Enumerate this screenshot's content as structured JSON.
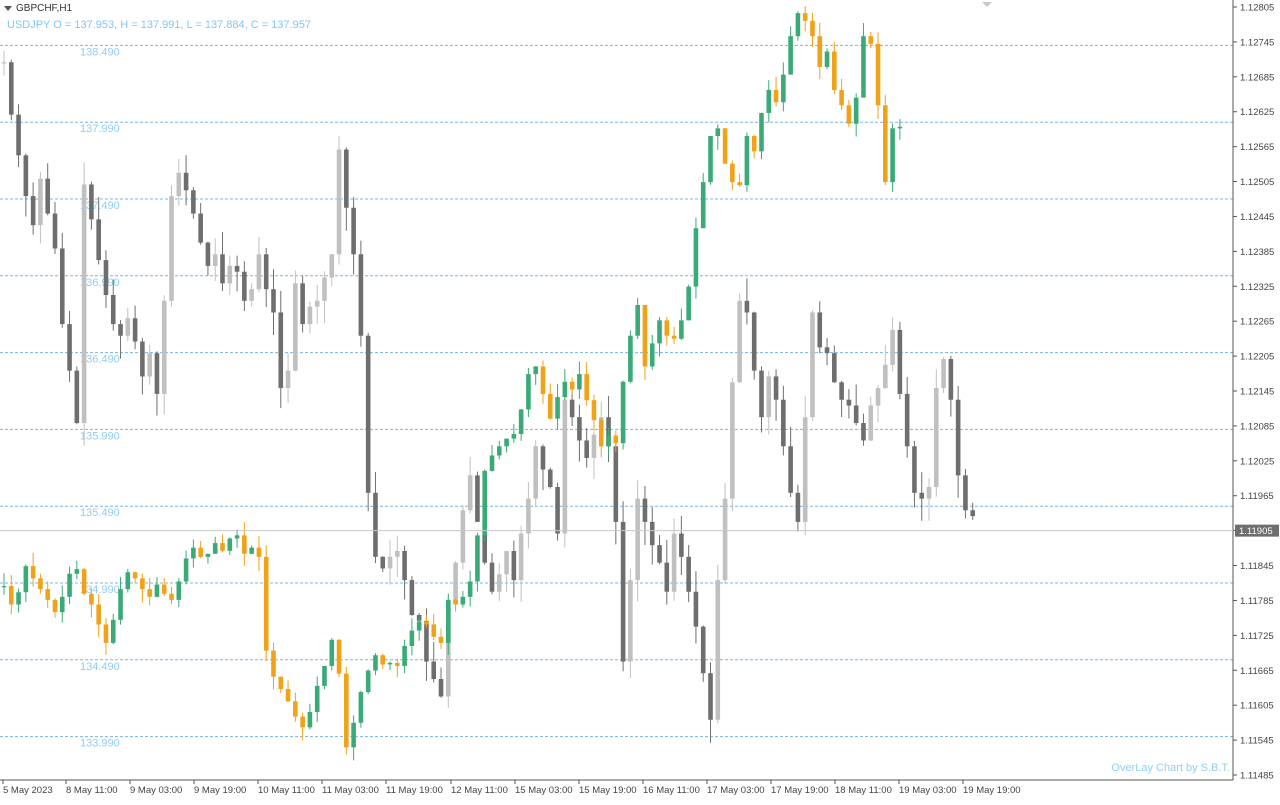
{
  "window": {
    "symbol_title": "GBPCHF,H1",
    "overlay_info": "USDJPY O = 137.953, H = 137.991, L = 137.884, C = 137.957",
    "watermark": "OverLay Chart by S.B.T.",
    "current_price_label": "1.11905"
  },
  "colors": {
    "base_candle": "#6e6e6e",
    "base_candle_light": "#c0c0c0",
    "overlay_bull": "#3aaa78",
    "overlay_bear": "#f0a218",
    "grid_line": "#7ab4e0",
    "overlay_label": "#8fcdf2",
    "axis": "#555555"
  },
  "chart_data": {
    "type": "candlestick",
    "base_symbol": "GBPCHF",
    "timeframe": "H1",
    "overlay_symbol": "USDJPY",
    "y_axis_right": {
      "ticks": [
        "1.12805",
        "1.12745",
        "1.12685",
        "1.12625",
        "1.12565",
        "1.12505",
        "1.12445",
        "1.12385",
        "1.12325",
        "1.12265",
        "1.12205",
        "1.12145",
        "1.12085",
        "1.12025",
        "1.11965",
        "1.11905",
        "1.11845",
        "1.11785",
        "1.11725",
        "1.11665",
        "1.11605",
        "1.11545",
        "1.11485"
      ],
      "range": [
        1.11485,
        1.12805
      ]
    },
    "overlay_levels": [
      "138.490",
      "137.990",
      "137.490",
      "136.990",
      "136.490",
      "135.990",
      "135.490",
      "134.990",
      "134.490",
      "133.990"
    ],
    "overlay_range": [
      133.74,
      138.74
    ],
    "x_axis_labels": [
      "5 May 2023",
      "8 May 11:00",
      "9 May 03:00",
      "9 May 19:00",
      "10 May 11:00",
      "11 May 03:00",
      "11 May 19:00",
      "12 May 11:00",
      "15 May 03:00",
      "15 May 19:00",
      "16 May 11:00",
      "17 May 03:00",
      "17 May 19:00",
      "18 May 11:00",
      "19 May 03:00",
      "19 May 19:00"
    ],
    "base_close_path": [
      1.1271,
      1.1262,
      1.1255,
      1.1248,
      1.1243,
      1.1251,
      1.1245,
      1.1239,
      1.1226,
      1.1218,
      1.1209,
      1.125,
      1.1244,
      1.1237,
      1.1231,
      1.1226,
      1.1224,
      1.1227,
      1.1223,
      1.1217,
      1.1221,
      1.1214,
      1.123,
      1.1248,
      1.1252,
      1.1249,
      1.1245,
      1.124,
      1.1236,
      1.1238,
      1.1233,
      1.1236,
      1.1235,
      1.123,
      1.1232,
      1.1238,
      1.1232,
      1.1228,
      1.1215,
      1.1218,
      1.1233,
      1.1226,
      1.1229,
      1.123,
      1.1234,
      1.1238,
      1.1256,
      1.1246,
      1.1238,
      1.1224,
      1.1197,
      1.1186,
      1.1184,
      1.1186,
      1.1187,
      1.1182,
      1.1176,
      1.1175,
      1.1168,
      1.1165,
      1.1162,
      1.1178,
      1.1185,
      1.1194,
      1.12,
      1.1192,
      1.1185,
      1.118,
      1.1183,
      1.1187,
      1.1182,
      1.119,
      1.1196,
      1.1205,
      1.1201,
      1.1198,
      1.119,
      1.1213,
      1.121,
      1.1206,
      1.1203,
      1.1207,
      1.121,
      1.1205,
      1.1192,
      1.1168,
      1.1182,
      1.1196,
      1.1192,
      1.1188,
      1.1185,
      1.118,
      1.119,
      1.1186,
      1.118,
      1.1174,
      1.1166,
      1.1158,
      1.1182,
      1.1196,
      1.1216,
      1.123,
      1.1228,
      1.1218,
      1.121,
      1.1217,
      1.1213,
      1.1205,
      1.1197,
      1.1192,
      1.121,
      1.1228,
      1.1222,
      1.1221,
      1.1216,
      1.1213,
      1.1212,
      1.1209,
      1.1206,
      1.1212,
      1.1215,
      1.1219,
      1.1225,
      1.1214,
      1.1205,
      1.1197,
      1.1196,
      1.1198,
      1.1215,
      1.122,
      1.1213,
      1.12,
      1.1194,
      1.1193
    ],
    "overlay_close_path": [
      134.97,
      134.85,
      134.93,
      135.1,
      135.02,
      134.95,
      134.88,
      134.8,
      134.9,
      135.05,
      135.08,
      134.92,
      134.85,
      134.72,
      134.6,
      134.75,
      134.95,
      135.06,
      135.02,
      134.95,
      134.9,
      134.98,
      134.92,
      134.88,
      135.0,
      135.15,
      135.22,
      135.16,
      135.18,
      135.25,
      135.2,
      135.28,
      135.3,
      135.18,
      135.22,
      135.16,
      134.55,
      134.38,
      134.3,
      134.22,
      134.12,
      134.05,
      134.15,
      134.32,
      134.45,
      134.62,
      134.4,
      133.92,
      134.08,
      134.28,
      134.42,
      134.52,
      134.46,
      134.47,
      134.45,
      134.58,
      134.68,
      134.74,
      134.72,
      134.64,
      134.6,
      134.88,
      134.85,
      134.9,
      135.0,
      135.3,
      135.72,
      135.82,
      135.88,
      135.93,
      135.96,
      136.12,
      136.35,
      136.4,
      136.22,
      136.06,
      136.2,
      136.3,
      136.25,
      136.35,
      136.18,
      136.05,
      135.88,
      135.95,
      135.9,
      136.3,
      136.6,
      136.8,
      136.4,
      136.55,
      136.7,
      136.6,
      136.58,
      136.7,
      136.92,
      137.3,
      137.6,
      137.9,
      137.95,
      137.72,
      137.6,
      137.58,
      137.9,
      137.8,
      138.05,
      138.2,
      138.12,
      138.3,
      138.55,
      138.7,
      138.65,
      138.55,
      138.35,
      138.45,
      138.2,
      138.1,
      137.98,
      138.15,
      138.55,
      138.5,
      138.1,
      137.6,
      137.95,
      137.96
    ]
  }
}
